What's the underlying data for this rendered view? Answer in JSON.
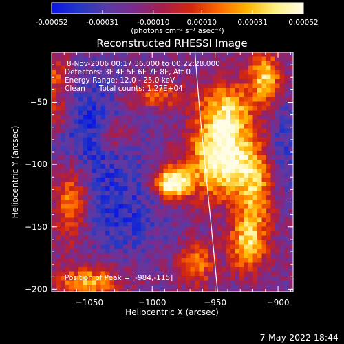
{
  "colorbar": {
    "ticks": [
      "-0.00052",
      "-0.00031",
      "-0.00010",
      "0.00010",
      "0.00031",
      "0.00052"
    ],
    "units": "(photons cm⁻² s⁻¹ asec⁻²)",
    "vmin": -0.00052,
    "vmax": 0.00052,
    "colors": [
      "#0b14e6",
      "#2438c4",
      "#5a3aa6",
      "#7d2a8a",
      "#a81e4a",
      "#d4280e",
      "#ff6a00",
      "#ffb400",
      "#fff082",
      "#fffde8"
    ]
  },
  "plot": {
    "title": "Reconstructed RHESSI Image",
    "overlay_lines": [
      "8-Nov-2006 00:17:36.000 to 00:22:28.000",
      "Detectors: 3F 4F 5F 6F 7F 8F, Att 0",
      "Energy Range: 12.0 - 25.0 keV",
      "Clean      Total counts: 1.27E+04"
    ],
    "peak_label": "Position of Peak = [-984,-115]",
    "footer_date": "7-May-2022 18:44"
  },
  "chart_data": {
    "type": "heatmap",
    "title": "Reconstructed RHESSI Image",
    "xlabel": "Heliocentric X (arcsec)",
    "ylabel": "Heliocentric Y (arcsec)",
    "xlim": [
      -1080,
      -888
    ],
    "ylim": [
      -202,
      -10
    ],
    "x_ticks": [
      {
        "value": -1050,
        "label": "−1050"
      },
      {
        "value": -1000,
        "label": "−1000"
      },
      {
        "value": -950,
        "label": "−950"
      },
      {
        "value": -900,
        "label": "−900"
      }
    ],
    "y_ticks": [
      {
        "value": -50,
        "label": "−50"
      },
      {
        "value": -100,
        "label": "−100"
      },
      {
        "value": -150,
        "label": "−150"
      },
      {
        "value": -200,
        "label": "−200"
      }
    ],
    "peak": {
      "x": -984,
      "y": -115
    },
    "limb_curve": [
      [
        -966,
        -10
      ],
      [
        -962,
        -60
      ],
      [
        -958,
        -100
      ],
      [
        -953,
        -150
      ],
      [
        -948,
        -202
      ]
    ],
    "sources": [
      {
        "x": -984,
        "y": -115,
        "amp": 1.0,
        "sx": 10,
        "sy": 9
      },
      {
        "x": -945,
        "y": -95,
        "amp": 0.95,
        "sx": 18,
        "sy": 22
      },
      {
        "x": -940,
        "y": -55,
        "amp": 0.6,
        "sx": 14,
        "sy": 16
      },
      {
        "x": -910,
        "y": -30,
        "amp": 0.7,
        "sx": 9,
        "sy": 14
      },
      {
        "x": -918,
        "y": -125,
        "amp": 0.55,
        "sx": 10,
        "sy": 26
      },
      {
        "x": -1050,
        "y": -195,
        "amp": 0.6,
        "sx": 18,
        "sy": 10
      },
      {
        "x": -1065,
        "y": -130,
        "amp": 0.55,
        "sx": 10,
        "sy": 22
      },
      {
        "x": -1030,
        "y": -75,
        "amp": 0.45,
        "sx": 10,
        "sy": 10
      },
      {
        "x": -1000,
        "y": -45,
        "amp": 0.4,
        "sx": 20,
        "sy": 8
      },
      {
        "x": -965,
        "y": -180,
        "amp": 0.5,
        "sx": 10,
        "sy": 12
      },
      {
        "x": -925,
        "y": -165,
        "amp": 0.6,
        "sx": 10,
        "sy": 15
      },
      {
        "x": -1075,
        "y": -30,
        "amp": 0.4,
        "sx": 8,
        "sy": 12
      },
      {
        "x": -1075,
        "y": -60,
        "amp": 0.35,
        "sx": 8,
        "sy": 10
      }
    ],
    "cool_regions": [
      {
        "x": -1045,
        "y": -70,
        "amp": 0.45,
        "sx": 22,
        "sy": 30
      },
      {
        "x": -1025,
        "y": -140,
        "amp": 0.35,
        "sx": 24,
        "sy": 25
      },
      {
        "x": -895,
        "y": -85,
        "amp": 0.3,
        "sx": 8,
        "sy": 25
      }
    ]
  }
}
